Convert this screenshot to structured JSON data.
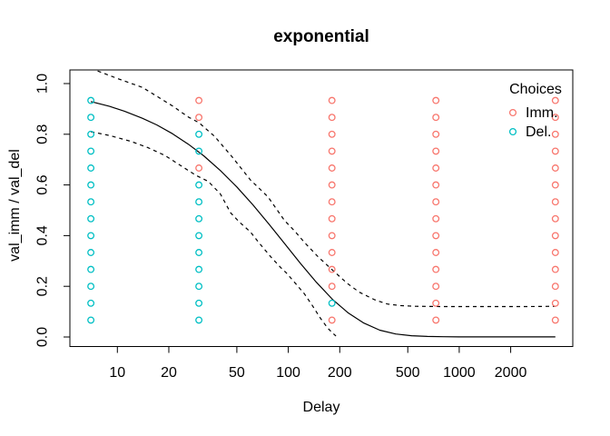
{
  "title": "exponential",
  "axes": {
    "x_label": "Delay",
    "y_label": "val_imm / val_del"
  },
  "chart_data": {
    "type": "scatter",
    "title": "exponential",
    "xlabel": "Delay",
    "ylabel": "val_imm / val_del",
    "x_scale": "log",
    "x_ticks": [
      10,
      20,
      50,
      100,
      200,
      500,
      1000,
      2000
    ],
    "y_ticks": [
      0.0,
      0.2,
      0.4,
      0.6,
      0.8,
      1.0
    ],
    "xlim": [
      6,
      4300
    ],
    "ylim": [
      0,
      1
    ],
    "grid": false,
    "colors": {
      "Imm": "#F8766D",
      "Del": "#00BFC4"
    },
    "legend": {
      "title": "Choices",
      "position": "top-right",
      "items": [
        {
          "label": "Imm.",
          "key": "Imm",
          "color": "#F8766D"
        },
        {
          "label": "Del.",
          "key": "Del",
          "color": "#00BFC4"
        }
      ]
    },
    "points": {
      "value_ratios": [
        0.0667,
        0.1333,
        0.2,
        0.2667,
        0.3333,
        0.4,
        0.4667,
        0.5333,
        0.6,
        0.6667,
        0.7333,
        0.8,
        0.8667,
        0.9333
      ],
      "series": [
        {
          "delay": 7,
          "choices": [
            "Del",
            "Del",
            "Del",
            "Del",
            "Del",
            "Del",
            "Del",
            "Del",
            "Del",
            "Del",
            "Del",
            "Del",
            "Del",
            "Del"
          ]
        },
        {
          "delay": 30,
          "choices": [
            "Del",
            "Del",
            "Del",
            "Del",
            "Del",
            "Del",
            "Del",
            "Del",
            "Del",
            "Imm",
            "Del",
            "Del",
            "Imm",
            "Imm"
          ]
        },
        {
          "delay": 180,
          "choices": [
            "Imm",
            "Del",
            "Imm",
            "Imm",
            "Imm",
            "Imm",
            "Imm",
            "Imm",
            "Imm",
            "Imm",
            "Imm",
            "Imm",
            "Imm",
            "Imm"
          ]
        },
        {
          "delay": 730,
          "choices": [
            "Imm",
            "Imm",
            "Imm",
            "Imm",
            "Imm",
            "Imm",
            "Imm",
            "Imm",
            "Imm",
            "Imm",
            "Imm",
            "Imm",
            "Imm",
            "Imm"
          ]
        },
        {
          "delay": 3650,
          "choices": [
            "Imm",
            "Imm",
            "Imm",
            "Imm",
            "Imm",
            "Imm",
            "Imm",
            "Imm",
            "Imm",
            "Imm",
            "Imm",
            "Imm",
            "Imm",
            "Imm"
          ]
        }
      ]
    },
    "curves": [
      {
        "name": "fit",
        "style": "solid",
        "points": [
          [
            7,
            0.929
          ],
          [
            9,
            0.91
          ],
          [
            11,
            0.891
          ],
          [
            14,
            0.863
          ],
          [
            17,
            0.837
          ],
          [
            21,
            0.802
          ],
          [
            26,
            0.761
          ],
          [
            32,
            0.715
          ],
          [
            40,
            0.657
          ],
          [
            50,
            0.592
          ],
          [
            62,
            0.522
          ],
          [
            77,
            0.446
          ],
          [
            95,
            0.369
          ],
          [
            118,
            0.29
          ],
          [
            146,
            0.216
          ],
          [
            181,
            0.149
          ],
          [
            224,
            0.095
          ],
          [
            277,
            0.055
          ],
          [
            343,
            0.027
          ],
          [
            425,
            0.012
          ],
          [
            526,
            0.005
          ],
          [
            651,
            0.002
          ],
          [
            806,
            0.001
          ],
          [
            1000,
            0.0005
          ],
          [
            1500,
            0.0003
          ],
          [
            2300,
            0.0002
          ],
          [
            3650,
            0.0002
          ]
        ]
      },
      {
        "name": "upper-ci",
        "style": "dashed",
        "points": [
          [
            7,
            1.06
          ],
          [
            10,
            1.02
          ],
          [
            14,
            0.985
          ],
          [
            17,
            0.95
          ],
          [
            21,
            0.912
          ],
          [
            26,
            0.868
          ],
          [
            30,
            0.846
          ],
          [
            37,
            0.792
          ],
          [
            47,
            0.71
          ],
          [
            60,
            0.62
          ],
          [
            76,
            0.553
          ],
          [
            95,
            0.46
          ],
          [
            110,
            0.415
          ],
          [
            124,
            0.374
          ],
          [
            150,
            0.315
          ],
          [
            180,
            0.266
          ],
          [
            220,
            0.213
          ],
          [
            260,
            0.177
          ],
          [
            320,
            0.147
          ],
          [
            380,
            0.13
          ],
          [
            450,
            0.124
          ],
          [
            550,
            0.121
          ],
          [
            800,
            0.12
          ],
          [
            1500,
            0.12
          ],
          [
            2500,
            0.12
          ],
          [
            3650,
            0.121
          ]
        ]
      },
      {
        "name": "lower-ci",
        "style": "dashed",
        "points": [
          [
            7,
            0.81
          ],
          [
            9,
            0.795
          ],
          [
            12,
            0.772
          ],
          [
            15,
            0.748
          ],
          [
            19,
            0.716
          ],
          [
            24,
            0.672
          ],
          [
            29,
            0.637
          ],
          [
            34,
            0.614
          ],
          [
            40,
            0.565
          ],
          [
            46,
            0.49
          ],
          [
            52,
            0.452
          ],
          [
            60,
            0.415
          ],
          [
            67,
            0.374
          ],
          [
            80,
            0.312
          ],
          [
            90,
            0.275
          ],
          [
            97,
            0.254
          ],
          [
            110,
            0.212
          ],
          [
            124,
            0.171
          ],
          [
            138,
            0.125
          ],
          [
            155,
            0.072
          ],
          [
            170,
            0.035
          ],
          [
            182,
            0.015
          ],
          [
            190,
            0.004
          ]
        ]
      }
    ]
  }
}
